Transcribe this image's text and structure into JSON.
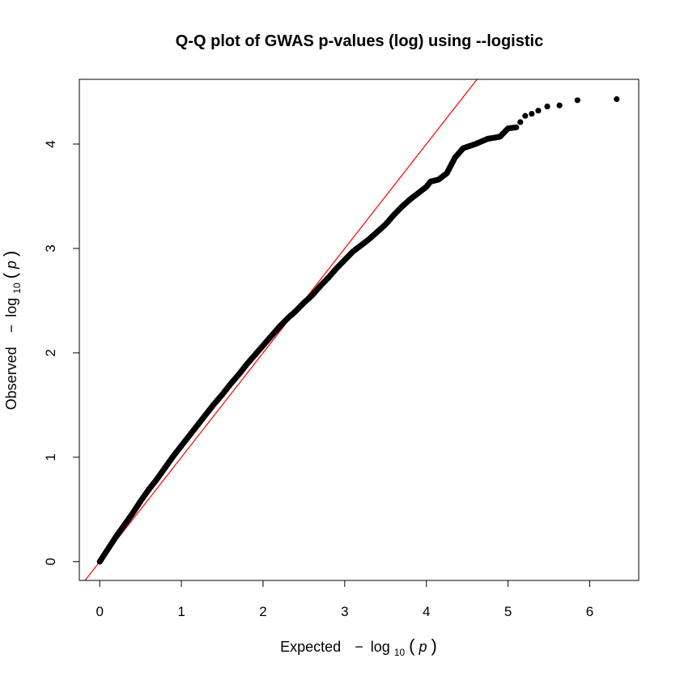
{
  "chart_data": {
    "type": "scatter",
    "title": "Q-Q plot of GWAS p-values (log) using --logistic",
    "xlabel": {
      "prefix": "Expected",
      "minus": "−",
      "log": "log",
      "base": "10",
      "arg": "p"
    },
    "ylabel": {
      "prefix": "Observed",
      "minus": "−",
      "log": "log",
      "base": "10",
      "arg": "p"
    },
    "xlim": [
      -0.25,
      6.6
    ],
    "ylim": [
      -0.18,
      4.62
    ],
    "x_ticks": [
      "0",
      "1",
      "2",
      "3",
      "4",
      "5",
      "6"
    ],
    "y_ticks": [
      "0",
      "1",
      "2",
      "3",
      "4"
    ],
    "grid": false,
    "reference_line": {
      "slope": 1,
      "intercept": 0,
      "color": "#ff0000"
    },
    "point_color": "#000000",
    "curve_points": [
      [
        0.0,
        0.0
      ],
      [
        0.1,
        0.12
      ],
      [
        0.2,
        0.24
      ],
      [
        0.3,
        0.35
      ],
      [
        0.4,
        0.46
      ],
      [
        0.5,
        0.58
      ],
      [
        0.6,
        0.69
      ],
      [
        0.7,
        0.79
      ],
      [
        0.8,
        0.9
      ],
      [
        0.9,
        1.01
      ],
      [
        1.0,
        1.11
      ],
      [
        1.1,
        1.21
      ],
      [
        1.2,
        1.31
      ],
      [
        1.3,
        1.41
      ],
      [
        1.4,
        1.51
      ],
      [
        1.5,
        1.6
      ],
      [
        1.6,
        1.7
      ],
      [
        1.7,
        1.79
      ],
      [
        1.8,
        1.89
      ],
      [
        1.9,
        1.98
      ],
      [
        2.0,
        2.07
      ],
      [
        2.1,
        2.16
      ],
      [
        2.2,
        2.25
      ],
      [
        2.3,
        2.33
      ],
      [
        2.4,
        2.4
      ],
      [
        2.5,
        2.48
      ],
      [
        2.6,
        2.55
      ],
      [
        2.7,
        2.64
      ],
      [
        2.8,
        2.72
      ],
      [
        2.9,
        2.81
      ],
      [
        3.0,
        2.89
      ],
      [
        3.1,
        2.97
      ],
      [
        3.2,
        3.03
      ],
      [
        3.3,
        3.09
      ],
      [
        3.4,
        3.16
      ],
      [
        3.5,
        3.23
      ],
      [
        3.6,
        3.32
      ],
      [
        3.7,
        3.4
      ],
      [
        3.8,
        3.47
      ],
      [
        3.9,
        3.53
      ],
      [
        4.0,
        3.59
      ],
      [
        4.05,
        3.64
      ],
      [
        4.15,
        3.66
      ],
      [
        4.25,
        3.72
      ],
      [
        4.35,
        3.87
      ],
      [
        4.45,
        3.96
      ],
      [
        4.6,
        4.0
      ],
      [
        4.75,
        4.05
      ],
      [
        4.9,
        4.07
      ],
      [
        5.0,
        4.15
      ],
      [
        5.1,
        4.16
      ]
    ],
    "outliers": [
      [
        5.15,
        4.21
      ],
      [
        5.21,
        4.27
      ],
      [
        5.29,
        4.29
      ],
      [
        5.37,
        4.32
      ],
      [
        5.48,
        4.36
      ],
      [
        5.63,
        4.37
      ],
      [
        5.85,
        4.42
      ],
      [
        6.33,
        4.43
      ]
    ]
  }
}
